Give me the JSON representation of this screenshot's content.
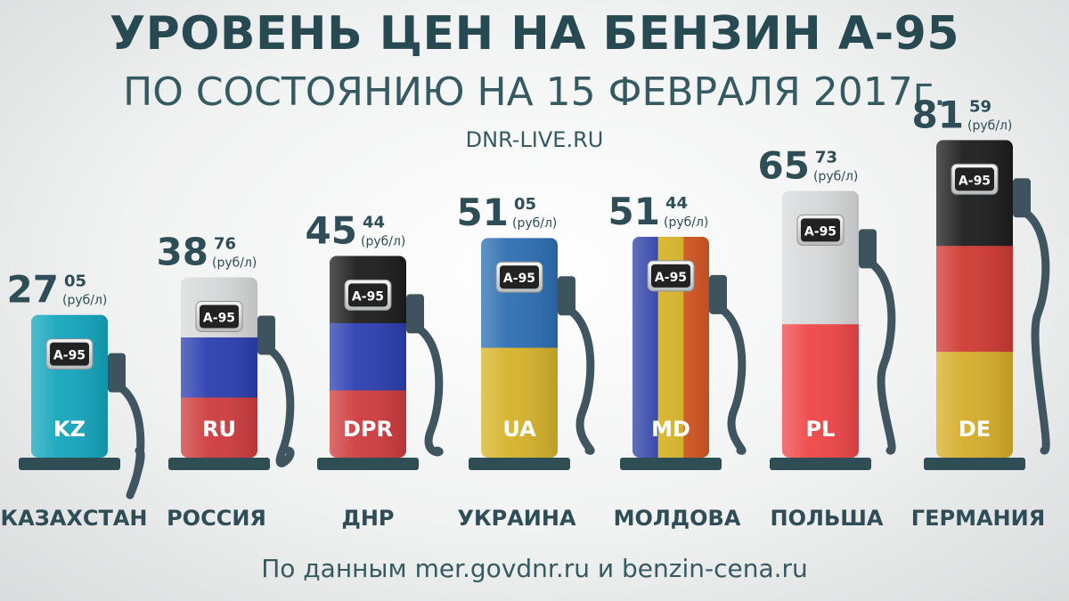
{
  "header": {
    "title": "УРОВЕНЬ ЦЕН НА БЕНЗИН А-95",
    "subtitle": "ПО СОСТОЯНИЮ НА 15 ФЕВРАЛЯ 2017г.",
    "site": "DNR-LIVE.RU"
  },
  "footer": {
    "source": "По данным mer.govdnr.ru и benzin-cena.ru"
  },
  "chart_data": {
    "type": "bar",
    "title": "УРОВЕНЬ ЦЕН НА БЕНЗИН А-95",
    "subtitle": "ПО СОСТОЯНИЮ НА 15 ФЕВРАЛЯ 2017г.",
    "unit": "(руб/л)",
    "fuel_label": "А-95",
    "categories": [
      "КАЗАХСТАН",
      "РОССИЯ",
      "ДНР",
      "УКРАИНА",
      "МОЛДОВА",
      "ПОЛЬША",
      "ГЕРМАНИЯ"
    ],
    "codes": [
      "KZ",
      "RU",
      "DPR",
      "UA",
      "MD",
      "PL",
      "DE"
    ],
    "values": [
      27.05,
      38.76,
      45.44,
      51.05,
      51.44,
      65.73,
      81.59
    ],
    "price_int": [
      "27",
      "38",
      "45",
      "51",
      "51",
      "65",
      "81"
    ],
    "price_dec": [
      "05",
      "76",
      "44",
      "05",
      "44",
      "73",
      "59"
    ],
    "flag_colors": [
      [
        "#14a6bd"
      ],
      [
        "#d8d9da",
        "#2b3fb0",
        "#cf3c3e"
      ],
      [
        "#1d1d1d",
        "#2b3fb0",
        "#cf3c3e"
      ],
      [
        "#2d6fb3",
        "#d6b32a"
      ],
      [
        "#2d3fa5",
        "#d8b52a",
        "#d95a25"
      ],
      [
        "#d8d9da",
        "#f04648"
      ],
      [
        "#1d1d1d",
        "#cf3a33",
        "#d6ae2a"
      ]
    ],
    "colors": {
      "text": "#2e4d56",
      "base": "#2f4d55",
      "hose": "#3f5560"
    }
  }
}
